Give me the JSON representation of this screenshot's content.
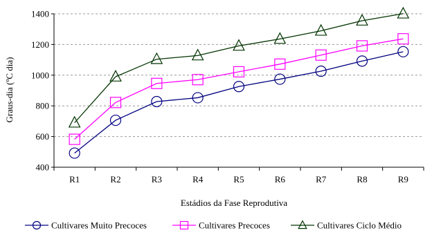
{
  "chart_data": {
    "type": "line",
    "categories": [
      "R1",
      "R2",
      "R3",
      "R4",
      "R5",
      "R6",
      "R7",
      "R8",
      "R9"
    ],
    "series": [
      {
        "name": "Cultivares Muito Precoces",
        "marker": "circle",
        "color": "#000080",
        "values": [
          492,
          706,
          828,
          853,
          926,
          974,
          1026,
          1092,
          1153
        ]
      },
      {
        "name": "Cultivares Precoces",
        "marker": "square",
        "color": "#ff00ff",
        "values": [
          582,
          822,
          946,
          971,
          1022,
          1072,
          1131,
          1191,
          1237
        ]
      },
      {
        "name": "Cultivares Ciclo Médio",
        "marker": "triangle",
        "color": "#003300",
        "values": [
          690,
          990,
          1104,
          1128,
          1191,
          1236,
          1289,
          1355,
          1401
        ]
      }
    ],
    "xlabel": "Estádios da Fase Reprodutiva",
    "ylabel": "Graus-dia (ºC dia)",
    "ylim": [
      400,
      1400
    ],
    "yticks": [
      400,
      600,
      800,
      1000,
      1200,
      1400
    ],
    "grid": "horizontal dashed",
    "legend": "bottom"
  }
}
